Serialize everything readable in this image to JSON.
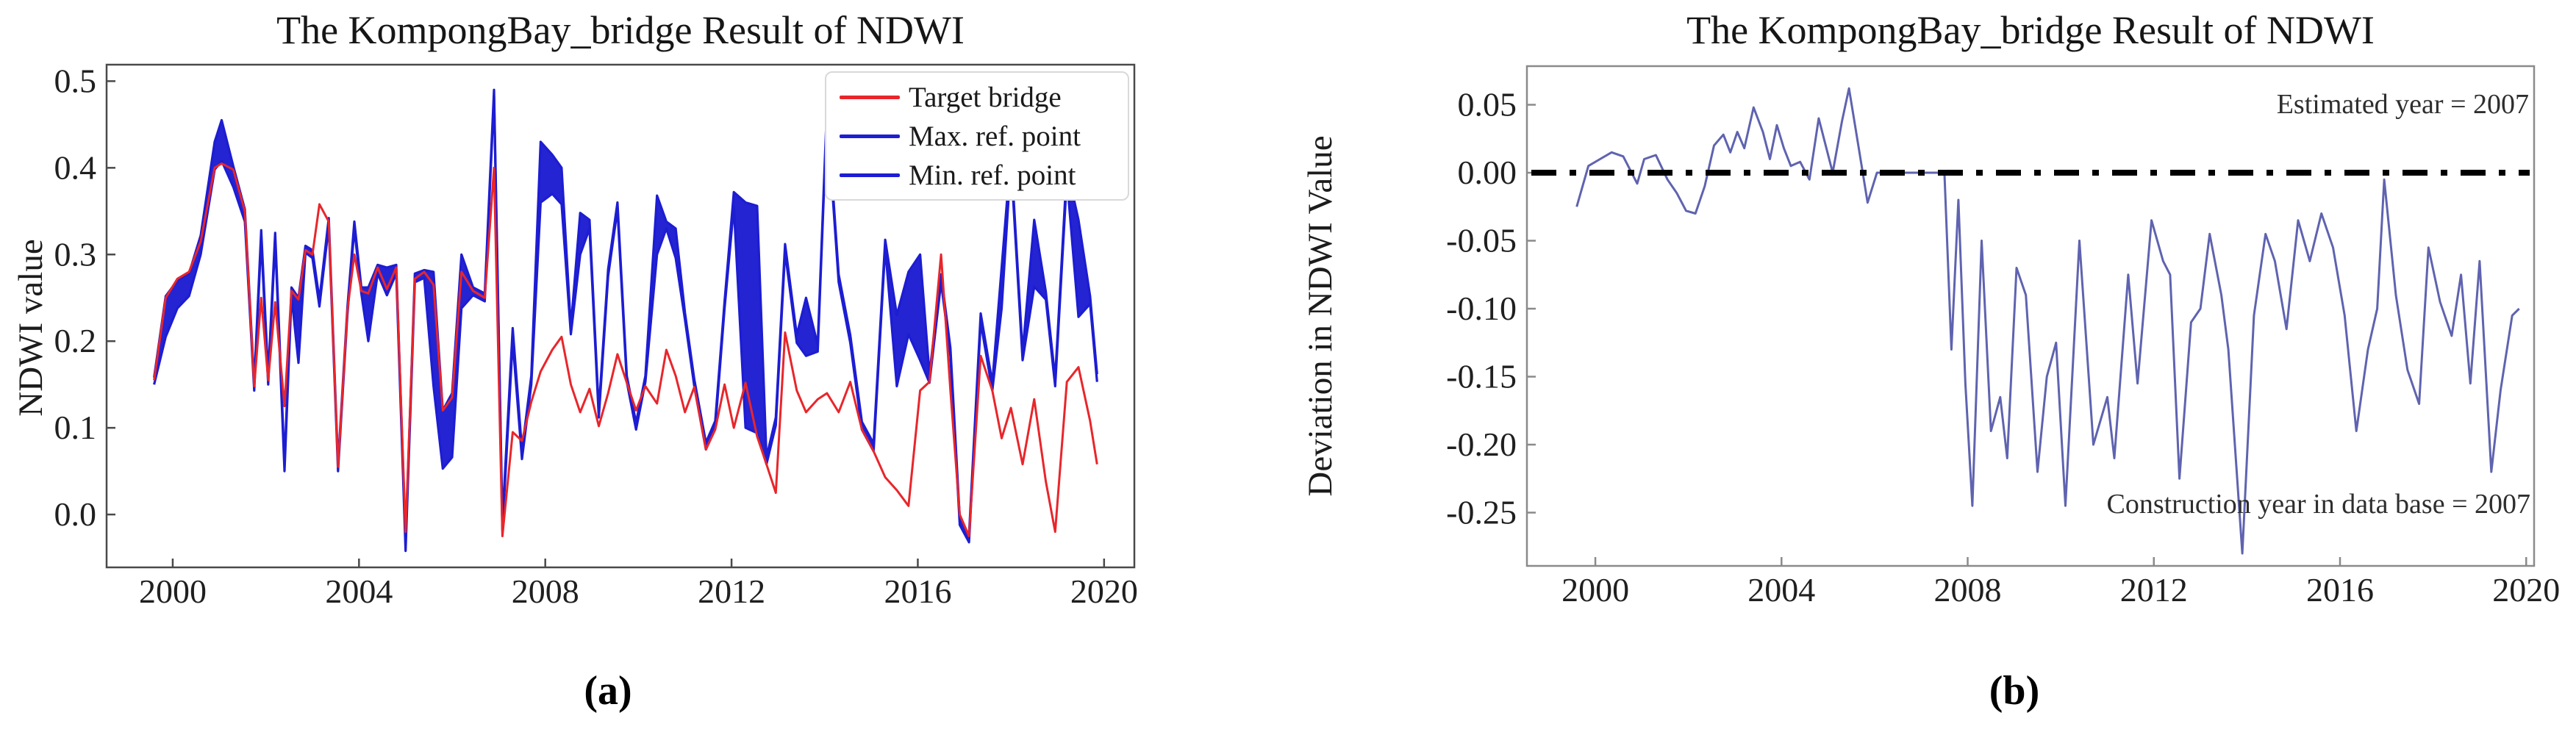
{
  "chart_data": [
    {
      "id": "a",
      "type": "line",
      "title": "The KompongBay_bridge Result of NDWI",
      "ylabel": "NDWI value",
      "xlabel": "",
      "caption": "(a)",
      "xlim": [
        1998.58,
        2020.65
      ],
      "ylim": [
        -0.061,
        0.519
      ],
      "grid": false,
      "legend_position": "upper right",
      "x_ticks": [
        2000,
        2004,
        2008,
        2012,
        2016,
        2020
      ],
      "y_ticks": [
        [
          0.0,
          "0.0"
        ],
        [
          0.1,
          "0.1"
        ],
        [
          0.2,
          "0.2"
        ],
        [
          0.3,
          "0.3"
        ],
        [
          0.4,
          "0.4"
        ],
        [
          0.5,
          "0.5"
        ]
      ],
      "frame_color": "#4a4a4a",
      "legend": [
        {
          "label": "Target bridge",
          "color": "#e8262b"
        },
        {
          "label": "Max. ref. point",
          "color": "#1d1dd2"
        },
        {
          "label": "Min. ref. point",
          "color": "#1d1dd2"
        }
      ],
      "band": {
        "upper": "Max. ref. point",
        "lower": "Min. ref. point",
        "color": "#1d1dd2"
      },
      "x": [
        1999.6,
        1999.85,
        2000.1,
        2000.35,
        2000.6,
        2000.9,
        2001.05,
        2001.3,
        2001.55,
        2001.75,
        2001.9,
        2002.05,
        2002.2,
        2002.4,
        2002.55,
        2002.7,
        2002.85,
        2003.0,
        2003.15,
        2003.35,
        2003.55,
        2003.75,
        2003.9,
        2004.05,
        2004.2,
        2004.4,
        2004.6,
        2004.8,
        2005.0,
        2005.2,
        2005.4,
        2005.6,
        2005.8,
        2006.0,
        2006.2,
        2006.45,
        2006.7,
        2006.9,
        2007.08,
        2007.3,
        2007.5,
        2007.7,
        2007.9,
        2008.15,
        2008.35,
        2008.55,
        2008.75,
        2008.95,
        2009.15,
        2009.35,
        2009.55,
        2009.75,
        2009.95,
        2010.15,
        2010.4,
        2010.6,
        2010.8,
        2011.0,
        2011.2,
        2011.45,
        2011.65,
        2011.85,
        2012.05,
        2012.3,
        2012.55,
        2012.75,
        2012.95,
        2013.15,
        2013.4,
        2013.6,
        2013.85,
        2014.05,
        2014.3,
        2014.55,
        2014.8,
        2015.05,
        2015.3,
        2015.55,
        2015.8,
        2016.05,
        2016.25,
        2016.5,
        2016.7,
        2016.9,
        2017.1,
        2017.35,
        2017.6,
        2017.8,
        2018.0,
        2018.25,
        2018.5,
        2018.75,
        2018.95,
        2019.2,
        2019.45,
        2019.7,
        2019.85
      ],
      "series": [
        {
          "name": "Max. ref. point",
          "color": "#1d1dd2",
          "values": [
            0.158,
            0.252,
            0.27,
            0.278,
            0.322,
            0.43,
            0.455,
            0.402,
            0.352,
            0.152,
            0.328,
            0.16,
            0.325,
            0.06,
            0.262,
            0.25,
            0.31,
            0.305,
            0.248,
            0.342,
            0.058,
            0.238,
            0.338,
            0.262,
            0.262,
            0.288,
            0.285,
            0.288,
            -0.032,
            0.278,
            0.282,
            0.28,
            0.12,
            0.14,
            0.3,
            0.262,
            0.255,
            0.49,
            -0.008,
            0.215,
            0.074,
            0.16,
            0.43,
            0.415,
            0.4,
            0.216,
            0.348,
            0.34,
            0.12,
            0.283,
            0.36,
            0.16,
            0.106,
            0.16,
            0.368,
            0.338,
            0.33,
            0.233,
            0.156,
            0.083,
            0.108,
            0.246,
            0.372,
            0.36,
            0.356,
            0.066,
            0.112,
            0.312,
            0.207,
            0.25,
            0.196,
            0.472,
            0.277,
            0.207,
            0.107,
            0.082,
            0.317,
            0.23,
            0.28,
            0.3,
            0.162,
            0.277,
            0.192,
            -0.004,
            -0.024,
            0.232,
            0.152,
            0.285,
            0.418,
            0.187,
            0.34,
            0.257,
            0.157,
            0.4,
            0.34,
            0.252,
            0.162
          ]
        },
        {
          "name": "Min. ref. point",
          "color": "#1d1dd2",
          "values": [
            0.15,
            0.205,
            0.238,
            0.252,
            0.3,
            0.398,
            0.408,
            0.378,
            0.338,
            0.143,
            0.318,
            0.15,
            0.316,
            0.05,
            0.253,
            0.175,
            0.302,
            0.296,
            0.24,
            0.333,
            0.05,
            0.23,
            0.33,
            0.255,
            0.2,
            0.278,
            0.253,
            0.278,
            -0.042,
            0.268,
            0.273,
            0.148,
            0.053,
            0.066,
            0.238,
            0.253,
            0.246,
            0.482,
            -0.018,
            0.2,
            0.064,
            0.15,
            0.36,
            0.37,
            0.358,
            0.208,
            0.3,
            0.33,
            0.112,
            0.275,
            0.352,
            0.153,
            0.098,
            0.153,
            0.3,
            0.33,
            0.296,
            0.225,
            0.148,
            0.075,
            0.1,
            0.238,
            0.355,
            0.1,
            0.094,
            0.058,
            0.103,
            0.303,
            0.198,
            0.183,
            0.188,
            0.463,
            0.268,
            0.198,
            0.098,
            0.073,
            0.308,
            0.148,
            0.208,
            0.178,
            0.152,
            0.268,
            0.183,
            -0.012,
            -0.032,
            0.222,
            0.143,
            0.238,
            0.408,
            0.178,
            0.263,
            0.248,
            0.148,
            0.388,
            0.228,
            0.243,
            0.153
          ]
        },
        {
          "name": "Target bridge",
          "color": "#e8262b",
          "values": [
            0.155,
            0.25,
            0.272,
            0.28,
            0.315,
            0.4,
            0.405,
            0.398,
            0.35,
            0.148,
            0.25,
            0.155,
            0.245,
            0.125,
            0.258,
            0.248,
            0.305,
            0.3,
            0.358,
            0.338,
            0.055,
            0.235,
            0.3,
            0.258,
            0.255,
            0.285,
            0.26,
            0.285,
            -0.02,
            0.272,
            0.28,
            0.265,
            0.12,
            0.135,
            0.28,
            0.258,
            0.25,
            0.4,
            -0.025,
            0.095,
            0.085,
            0.13,
            0.165,
            0.19,
            0.205,
            0.15,
            0.118,
            0.145,
            0.102,
            0.14,
            0.185,
            0.152,
            0.12,
            0.148,
            0.128,
            0.19,
            0.16,
            0.118,
            0.147,
            0.075,
            0.098,
            0.15,
            0.1,
            0.152,
            0.09,
            0.058,
            0.025,
            0.21,
            0.143,
            0.118,
            0.133,
            0.14,
            0.118,
            0.153,
            0.098,
            0.073,
            0.043,
            0.028,
            0.01,
            0.143,
            0.153,
            0.3,
            0.143,
            0.0,
            -0.025,
            0.183,
            0.143,
            0.088,
            0.123,
            0.058,
            0.133,
            0.038,
            -0.02,
            0.153,
            0.17,
            0.108,
            0.058
          ]
        }
      ]
    },
    {
      "id": "b",
      "type": "line",
      "title": "The KompongBay_bridge Result of NDWI",
      "ylabel": "Deviation in NDWI Value",
      "xlabel": "",
      "caption": "(b)",
      "xlim": [
        1998.53,
        2020.17
      ],
      "ylim": [
        -0.2892,
        0.0784
      ],
      "grid": false,
      "x_ticks": [
        2000,
        2004,
        2008,
        2012,
        2016,
        2020
      ],
      "y_ticks": [
        [
          0.05,
          "0.05"
        ],
        [
          0.0,
          "0.00"
        ],
        [
          -0.05,
          "-0.05"
        ],
        [
          -0.1,
          "-0.10"
        ],
        [
          -0.15,
          "-0.15"
        ],
        [
          -0.2,
          "-0.20"
        ],
        [
          -0.25,
          "-0.25"
        ]
      ],
      "frame_color": "#8a8a8a",
      "zero_line": {
        "value": 0.0,
        "style": "dash-dot",
        "color": "#000000"
      },
      "annotations": [
        {
          "text": "Estimated year = 2007",
          "position": "upper right"
        },
        {
          "text": "Construction year in data base = 2007",
          "position": "lower right"
        }
      ],
      "x": [
        1999.6,
        1999.85,
        2000.1,
        2000.35,
        2000.6,
        2000.9,
        2001.05,
        2001.3,
        2001.55,
        2001.75,
        2001.95,
        2002.15,
        2002.35,
        2002.55,
        2002.75,
        2002.9,
        2003.05,
        2003.2,
        2003.4,
        2003.6,
        2003.75,
        2003.9,
        2004.05,
        2004.2,
        2004.4,
        2004.6,
        2004.8,
        2004.95,
        2005.1,
        2005.3,
        2005.45,
        2005.65,
        2005.85,
        2006.05,
        2006.3,
        2006.55,
        2006.8,
        2007.05,
        2007.3,
        2007.5,
        2007.65,
        2007.8,
        2007.95,
        2008.1,
        2008.3,
        2008.5,
        2008.7,
        2008.85,
        2009.05,
        2009.25,
        2009.5,
        2009.7,
        2009.9,
        2010.1,
        2010.4,
        2010.7,
        2011.0,
        2011.15,
        2011.45,
        2011.65,
        2011.95,
        2012.2,
        2012.35,
        2012.55,
        2012.8,
        2013.0,
        2013.2,
        2013.45,
        2013.6,
        2013.9,
        2014.15,
        2014.4,
        2014.6,
        2014.85,
        2015.1,
        2015.35,
        2015.6,
        2015.85,
        2016.1,
        2016.35,
        2016.6,
        2016.8,
        2016.95,
        2017.2,
        2017.45,
        2017.7,
        2017.9,
        2018.15,
        2018.4,
        2018.6,
        2018.8,
        2019.0,
        2019.25,
        2019.45,
        2019.7,
        2019.85
      ],
      "series": [
        {
          "name": "Deviation in NDWI value",
          "color": "#5156a8",
          "values": [
            -0.025,
            0.005,
            0.01,
            0.015,
            0.012,
            -0.008,
            0.01,
            0.013,
            -0.005,
            -0.015,
            -0.028,
            -0.03,
            -0.01,
            0.02,
            0.028,
            0.015,
            0.03,
            0.018,
            0.048,
            0.03,
            0.01,
            0.035,
            0.018,
            0.005,
            0.008,
            -0.005,
            0.04,
            0.02,
            0.0,
            0.038,
            0.062,
            0.02,
            -0.022,
            0.0,
            0.0,
            0.0,
            0.0,
            0.0,
            0.0,
            0.0,
            -0.13,
            -0.02,
            -0.155,
            -0.245,
            -0.05,
            -0.19,
            -0.165,
            -0.21,
            -0.07,
            -0.09,
            -0.22,
            -0.15,
            -0.125,
            -0.245,
            -0.05,
            -0.2,
            -0.165,
            -0.21,
            -0.075,
            -0.155,
            -0.035,
            -0.065,
            -0.075,
            -0.225,
            -0.11,
            -0.1,
            -0.045,
            -0.09,
            -0.13,
            -0.28,
            -0.105,
            -0.045,
            -0.065,
            -0.115,
            -0.035,
            -0.065,
            -0.03,
            -0.055,
            -0.105,
            -0.19,
            -0.13,
            -0.1,
            -0.005,
            -0.09,
            -0.145,
            -0.17,
            -0.055,
            -0.095,
            -0.12,
            -0.075,
            -0.155,
            -0.065,
            -0.22,
            -0.16,
            -0.105,
            -0.1
          ]
        }
      ]
    }
  ]
}
